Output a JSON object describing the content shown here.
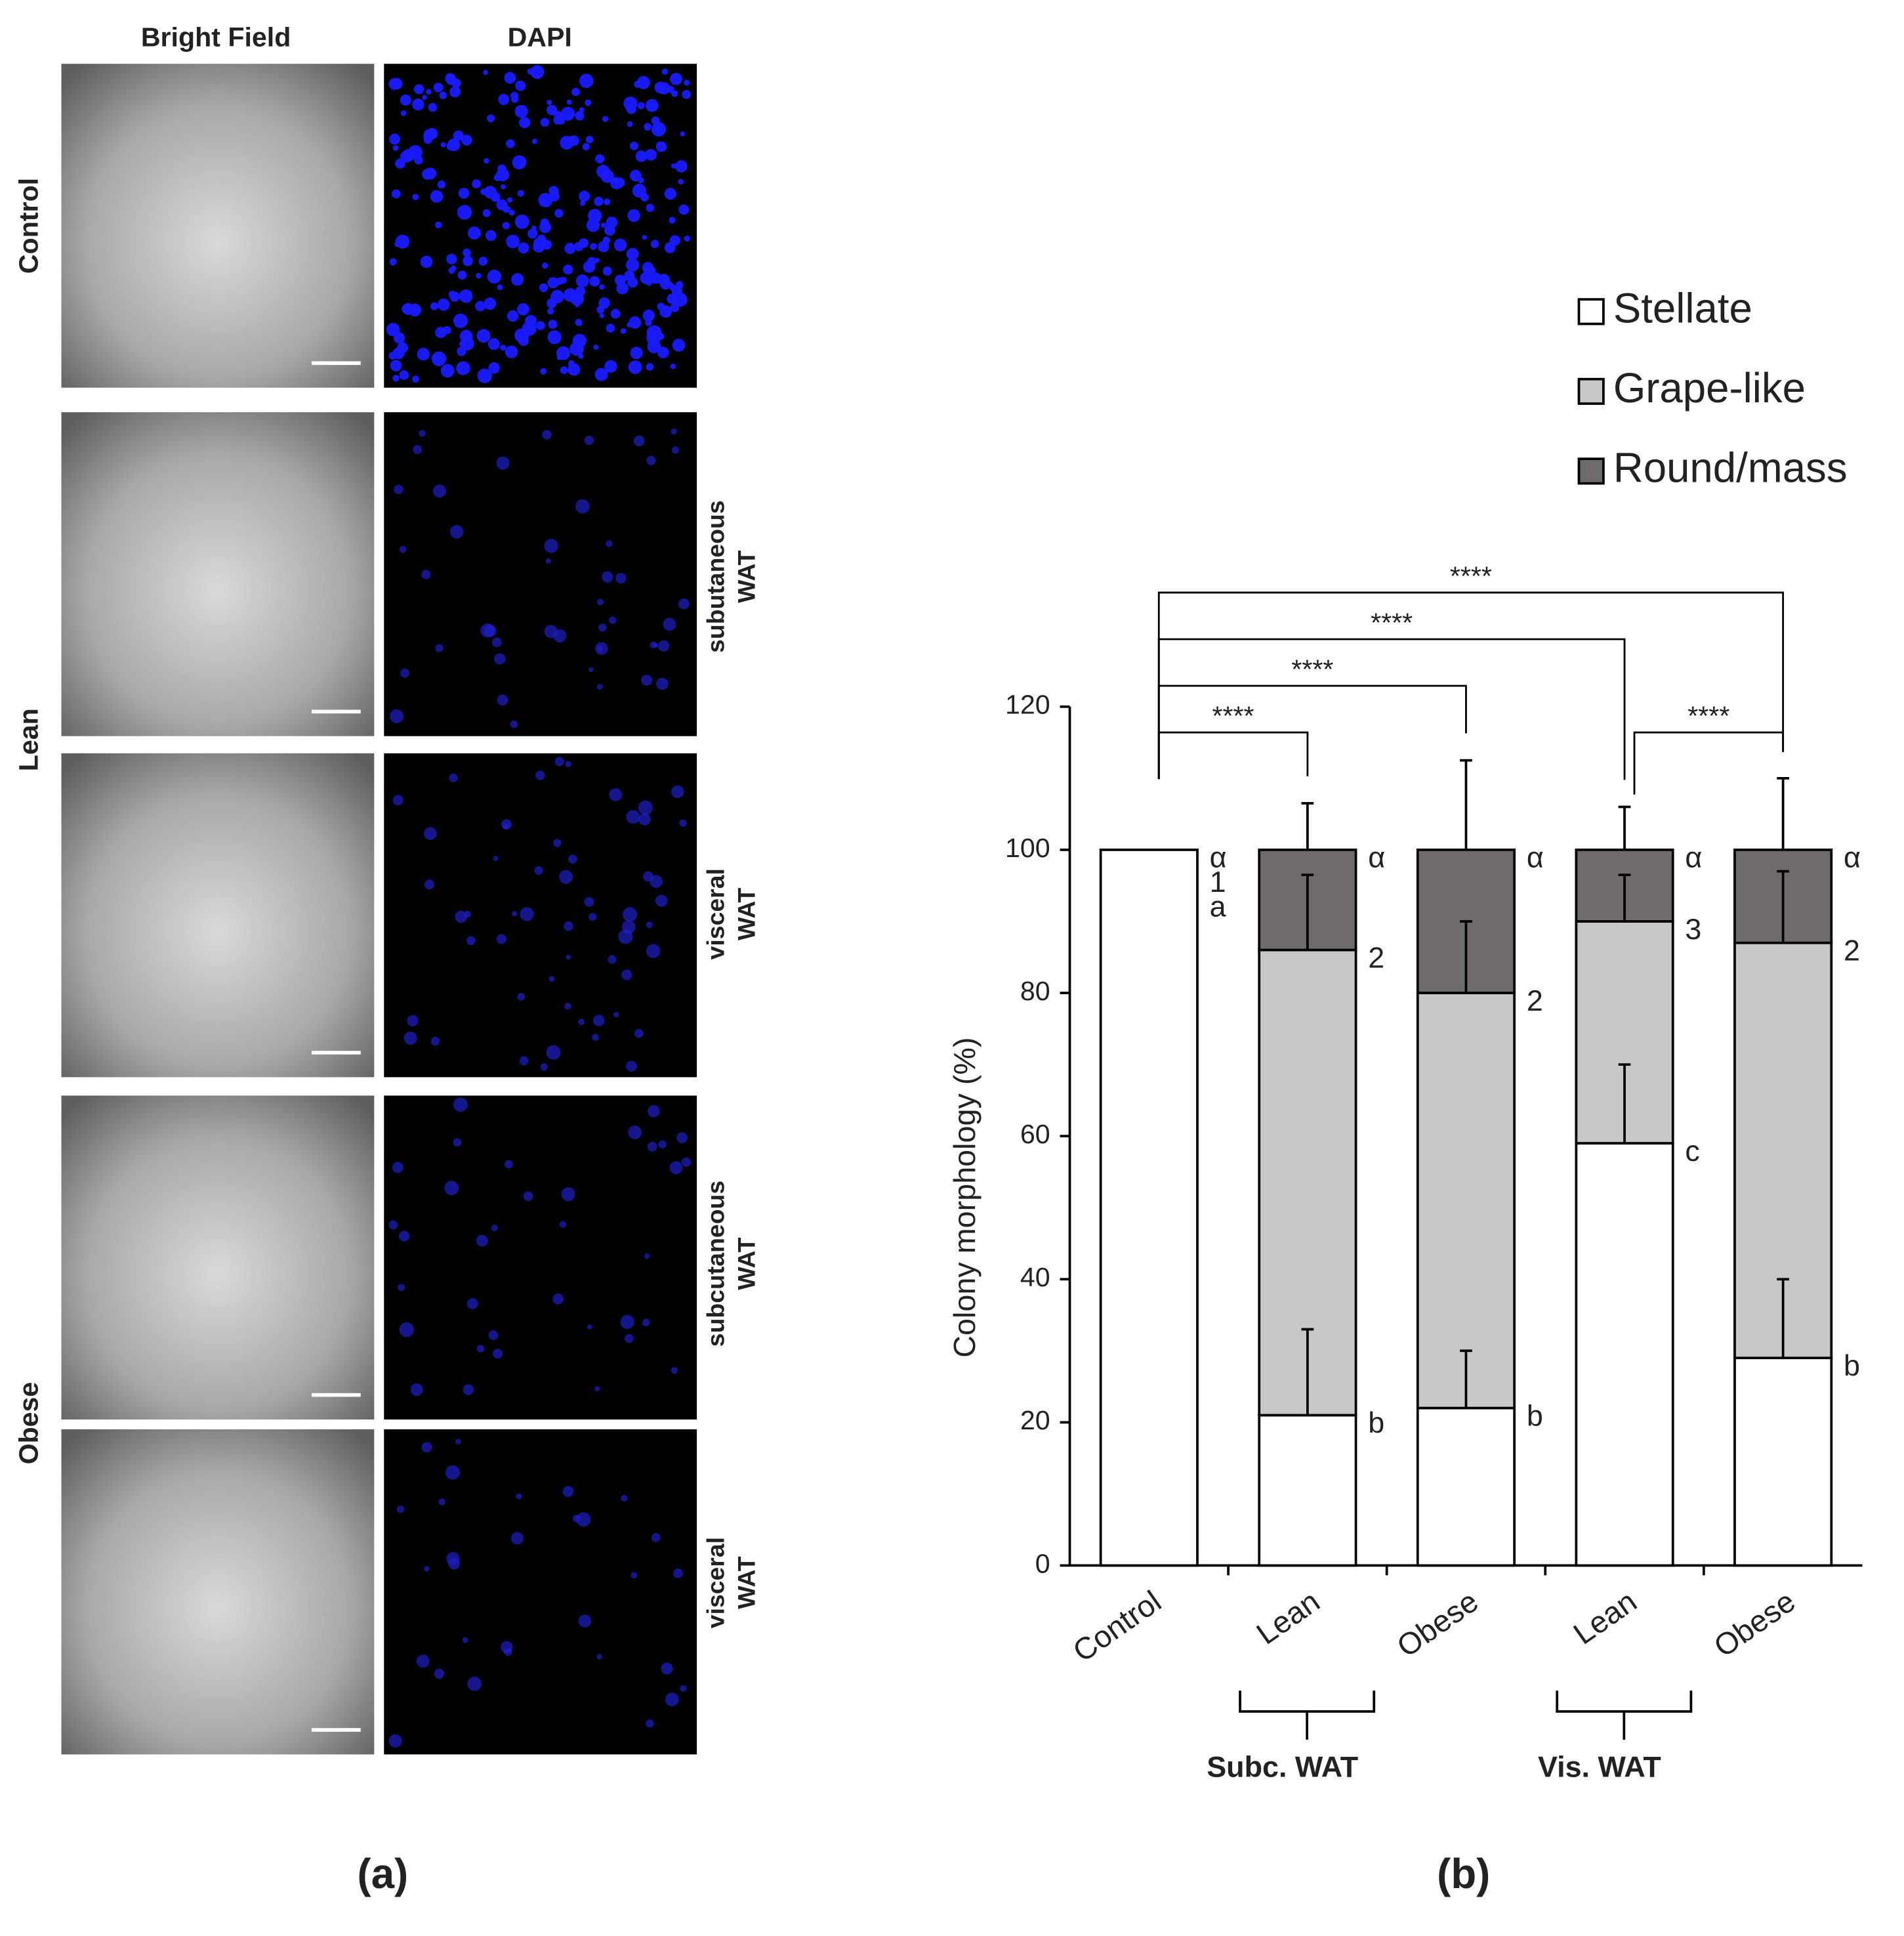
{
  "panel_a": {
    "label": "(a)",
    "columns": [
      "Bright Field",
      "DAPI"
    ],
    "rows": [
      "Control",
      "Lean",
      "Obese"
    ],
    "tissues": [
      [
        "subutaneous",
        "WAT"
      ],
      [
        "visceral",
        "WAT"
      ],
      [
        "subcutaneous",
        "WAT"
      ],
      [
        "visceral",
        "WAT"
      ]
    ]
  },
  "panel_b": {
    "label": "(b)"
  },
  "chart_data": {
    "type": "stacked_bar",
    "ylabel": "Colony morphology (%)",
    "categories": [
      "Control",
      "Lean",
      "Obese",
      "Lean",
      "Obese"
    ],
    "groups": [
      {
        "label": "Subc. WAT",
        "from": 1,
        "to": 2
      },
      {
        "label": "Vis. WAT",
        "from": 3,
        "to": 4
      }
    ],
    "series": [
      {
        "name": "Stellate",
        "color": "#ffffff",
        "values": [
          100,
          21,
          22,
          59,
          29
        ],
        "errors": [
          null,
          12,
          8,
          11,
          11
        ],
        "letters": [
          "a",
          "b",
          "b",
          "c",
          "b"
        ]
      },
      {
        "name": "Grape-like",
        "color": "#c8c8c8",
        "values": [
          0,
          65,
          58,
          31,
          58
        ],
        "errors": [
          null,
          10.5,
          10,
          6.5,
          10
        ],
        "letters": [
          "1",
          "2",
          "2",
          "3",
          "2"
        ]
      },
      {
        "name": "Round/mass",
        "color": "#6f6b6b",
        "values": [
          0,
          14,
          20,
          10,
          13
        ],
        "errors": [
          null,
          6.5,
          12.5,
          6,
          10
        ],
        "letters": [
          "α",
          "α",
          "α",
          "α",
          "α"
        ]
      }
    ],
    "comparisons": [
      {
        "from": 0,
        "to": 1,
        "label": "****"
      },
      {
        "from": 0,
        "to": 2,
        "label": "****"
      },
      {
        "from": 0,
        "to": 3,
        "label": "****"
      },
      {
        "from": 0,
        "to": 4,
        "label": "****"
      },
      {
        "from": 3,
        "to": 4,
        "label": "****"
      }
    ],
    "ylim": [
      0,
      120
    ],
    "yticks": [
      0,
      20,
      40,
      60,
      80,
      100,
      120
    ],
    "legend": "top-right"
  }
}
